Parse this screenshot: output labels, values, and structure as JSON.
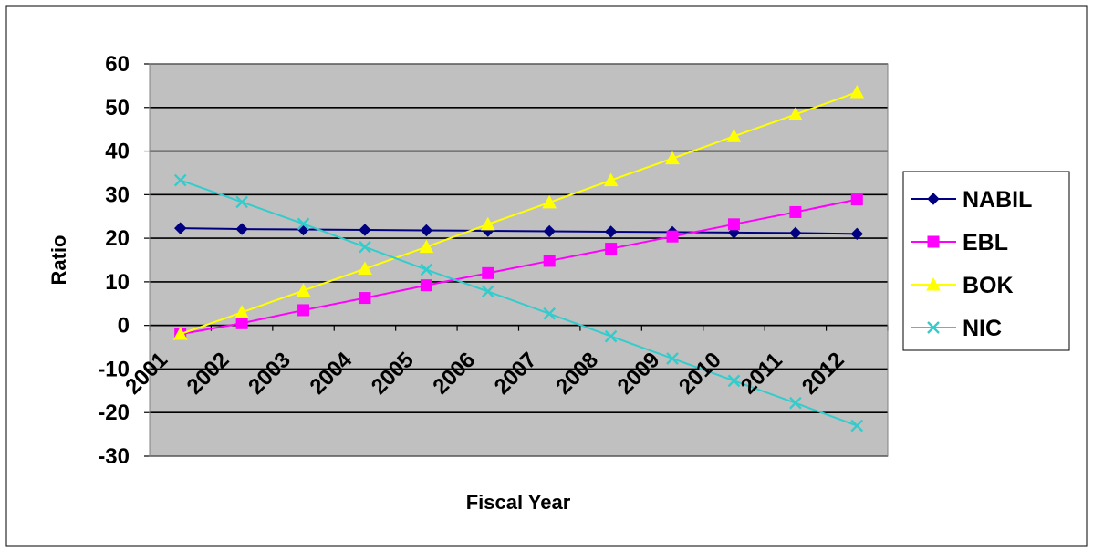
{
  "chart_data": {
    "type": "line",
    "title": "",
    "xlabel": "Fiscal Year",
    "ylabel": "Ratio",
    "categories": [
      "2001",
      "2002",
      "2003",
      "2004",
      "2005",
      "2006",
      "2007",
      "2008",
      "2009",
      "2010",
      "2011",
      "2012"
    ],
    "ylim": [
      -30,
      60
    ],
    "yticks": [
      "60",
      "50",
      "40",
      "30",
      "20",
      "10",
      "0",
      "-10",
      "-20",
      "-30"
    ],
    "grid": "horizontal",
    "plot_background": "#c0c0c0",
    "legend_position": "right",
    "series": [
      {
        "name": "NABIL",
        "color": "#000080",
        "marker": "diamond",
        "values": [
          22.3,
          22.1,
          22.0,
          21.9,
          21.8,
          21.7,
          21.6,
          21.5,
          21.4,
          21.3,
          21.2,
          21.0
        ]
      },
      {
        "name": "EBL",
        "color": "#ff00ff",
        "marker": "square",
        "values": [
          -2.0,
          0.5,
          3.5,
          6.3,
          9.2,
          12.0,
          14.8,
          17.6,
          20.4,
          23.2,
          26.0,
          28.9
        ]
      },
      {
        "name": "BOK",
        "color": "#ffff00",
        "marker": "triangle",
        "values": [
          -2.0,
          3.0,
          8.0,
          13.0,
          18.0,
          23.2,
          28.2,
          33.3,
          38.3,
          43.4,
          48.4,
          53.5
        ]
      },
      {
        "name": "NIC",
        "color": "#33cccc",
        "marker": "x",
        "values": [
          33.3,
          28.3,
          23.3,
          18.0,
          12.8,
          7.8,
          2.7,
          -2.5,
          -7.6,
          -12.7,
          -17.8,
          -23.0
        ]
      }
    ]
  }
}
